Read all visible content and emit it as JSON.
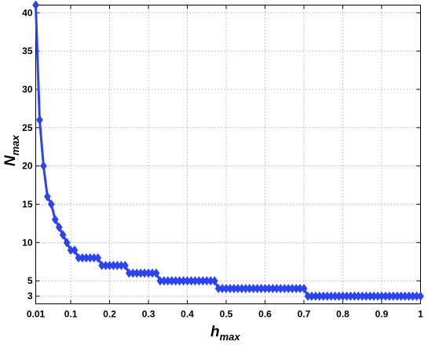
{
  "chart_data": {
    "type": "line",
    "title": "",
    "xlabel": {
      "main": "h",
      "sub": "max"
    },
    "ylabel": {
      "main": "N",
      "sub": "max"
    },
    "xlim": [
      0.01,
      1.0
    ],
    "ylim": [
      2,
      41
    ],
    "xticks": [
      0.01,
      0.1,
      0.2,
      0.3,
      0.4,
      0.5,
      0.6,
      0.7,
      0.8,
      0.9,
      1
    ],
    "xtick_labels": [
      "0.01",
      "0.1",
      "0.2",
      "0.3",
      "0.4",
      "0.5",
      "0.6",
      "0.7",
      "0.8",
      "0.9",
      "1"
    ],
    "yticks": [
      3,
      5,
      10,
      15,
      20,
      25,
      30,
      35,
      40
    ],
    "ytick_labels": [
      "3",
      "5",
      "10",
      "15",
      "20",
      "25",
      "30",
      "35",
      "40"
    ],
    "grid": true,
    "series_color": "#2b44f0",
    "marker": "diamond",
    "series": [
      {
        "x": [
          0.01,
          0.02,
          0.03,
          0.04,
          0.05,
          0.06,
          0.07,
          0.08,
          0.09,
          0.1,
          0.11,
          0.12,
          0.13,
          0.14,
          0.15,
          0.16,
          0.17,
          0.18,
          0.19,
          0.2,
          0.21,
          0.22,
          0.23,
          0.24,
          0.25,
          0.26,
          0.27,
          0.28,
          0.29,
          0.3,
          0.31,
          0.32,
          0.33,
          0.34,
          0.35,
          0.36,
          0.37,
          0.38,
          0.39,
          0.4,
          0.41,
          0.42,
          0.43,
          0.44,
          0.45,
          0.46,
          0.47,
          0.48,
          0.49,
          0.5,
          0.51,
          0.52,
          0.53,
          0.54,
          0.55,
          0.56,
          0.57,
          0.58,
          0.59,
          0.6,
          0.61,
          0.62,
          0.63,
          0.64,
          0.65,
          0.66,
          0.67,
          0.68,
          0.69,
          0.7,
          0.71,
          0.72,
          0.73,
          0.74,
          0.75,
          0.76,
          0.77,
          0.78,
          0.79,
          0.8,
          0.81,
          0.82,
          0.83,
          0.84,
          0.85,
          0.86,
          0.87,
          0.88,
          0.89,
          0.9,
          0.91,
          0.92,
          0.93,
          0.94,
          0.95,
          0.96,
          0.97,
          0.98,
          0.99,
          1.0
        ],
        "y": [
          41,
          26,
          20,
          16,
          15,
          13,
          12,
          11,
          10,
          9,
          9,
          8,
          8,
          8,
          8,
          8,
          8,
          7,
          7,
          7,
          7,
          7,
          7,
          7,
          6,
          6,
          6,
          6,
          6,
          6,
          6,
          6,
          5,
          5,
          5,
          5,
          5,
          5,
          5,
          5,
          5,
          5,
          5,
          5,
          5,
          5,
          5,
          4,
          4,
          4,
          4,
          4,
          4,
          4,
          4,
          4,
          4,
          4,
          4,
          4,
          4,
          4,
          4,
          4,
          4,
          4,
          4,
          4,
          4,
          4,
          3,
          3,
          3,
          3,
          3,
          3,
          3,
          3,
          3,
          3,
          3,
          3,
          3,
          3,
          3,
          3,
          3,
          3,
          3,
          3,
          3,
          3,
          3,
          3,
          3,
          3,
          3,
          3,
          3,
          3
        ]
      }
    ]
  }
}
